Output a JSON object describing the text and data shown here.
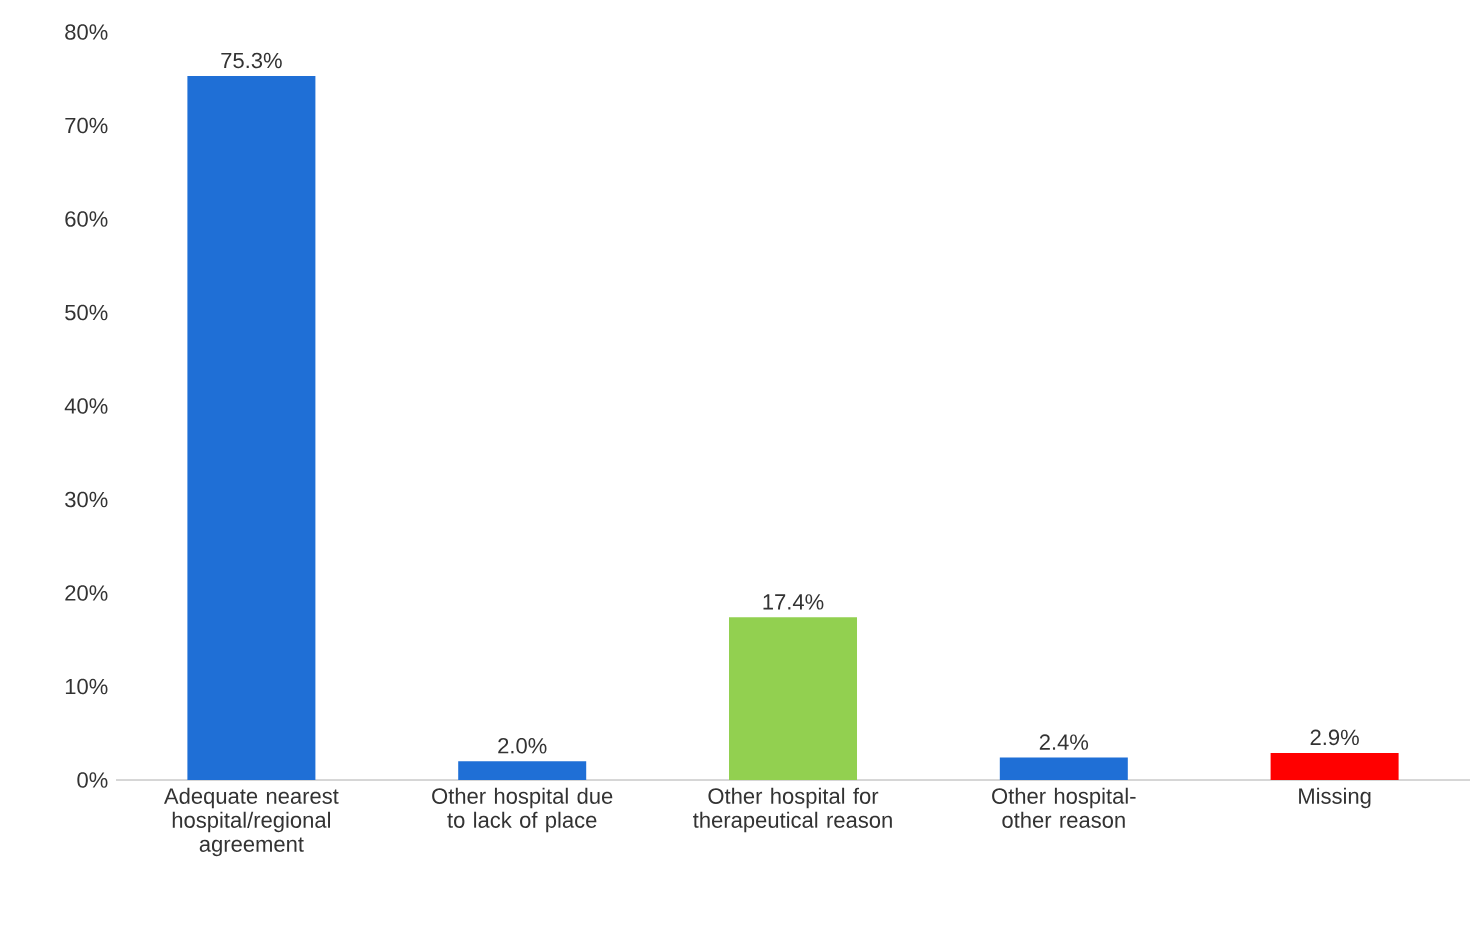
{
  "chart_data": {
    "type": "bar",
    "categories": [
      "Adequate nearest hospital/regional agreement",
      "Other hospital due to lack of place",
      "Other hospital for therapeutical reason",
      "Other hospital- other reason",
      "Missing"
    ],
    "values": [
      75.3,
      2.0,
      17.4,
      2.4,
      2.9
    ],
    "value_labels": [
      "75.3%",
      "2.0%",
      "17.4%",
      "2.4%",
      "2.9%"
    ],
    "colors": [
      "#1f6fd6",
      "#1f6fd6",
      "#92d050",
      "#1f6fd6",
      "#ff0000"
    ],
    "ylim": [
      0,
      80
    ],
    "yticks": [
      {
        "value": 0,
        "label": "0%"
      },
      {
        "value": 10,
        "label": "10%"
      },
      {
        "value": 20,
        "label": "20%"
      },
      {
        "value": 30,
        "label": "30%"
      },
      {
        "value": 40,
        "label": "40%"
      },
      {
        "value": 50,
        "label": "50%"
      },
      {
        "value": 60,
        "label": "60%"
      },
      {
        "value": 70,
        "label": "70%"
      },
      {
        "value": 80,
        "label": "80%"
      }
    ],
    "grid": false
  }
}
